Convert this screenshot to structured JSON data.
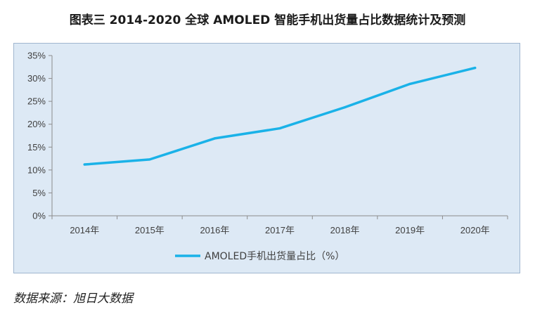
{
  "title": "图表三 2014-2020 全球 AMOLED 智能手机出货量占比数据统计及预测",
  "source": "数据来源：旭日大数据",
  "colors": {
    "line": "#1ab2e8",
    "panel": "#dde9f5",
    "axis": "#8c8c8c"
  },
  "chart_data": {
    "type": "line",
    "categories": [
      "2014年",
      "2015年",
      "2016年",
      "2017年",
      "2018年",
      "2019年",
      "2020年"
    ],
    "series": [
      {
        "name": "AMOLED手机出货量占比（%）",
        "values": [
          11.2,
          12.3,
          16.9,
          19.1,
          23.7,
          28.8,
          32.3
        ]
      }
    ],
    "yticks": [
      "0%",
      "5%",
      "10%",
      "15%",
      "20%",
      "25%",
      "30%",
      "35%"
    ],
    "ylim": [
      0,
      35
    ],
    "grid": false,
    "legend": "bottom"
  }
}
